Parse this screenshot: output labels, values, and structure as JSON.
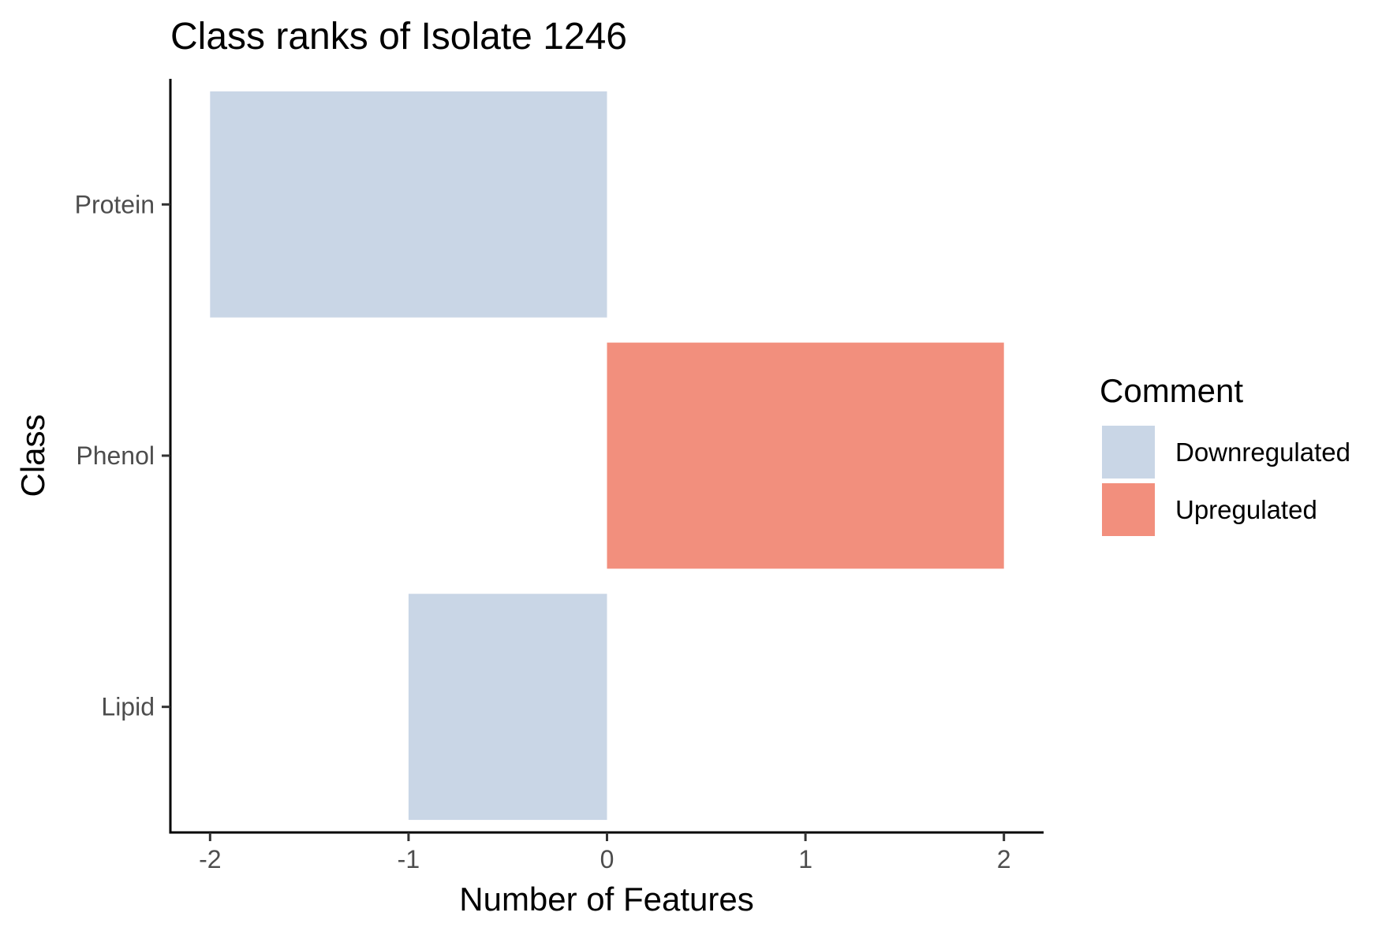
{
  "chart_data": {
    "type": "bar",
    "orientation": "horizontal",
    "title": "Class ranks of Isolate 1246",
    "xlabel": "Number of Features",
    "ylabel": "Class",
    "xlim": [
      -2.2,
      2.2
    ],
    "xticks": [
      -2,
      -1,
      0,
      1,
      2
    ],
    "categories": [
      "Protein",
      "Phenol",
      "Lipid"
    ],
    "bars": [
      {
        "category": "Protein",
        "value": -2,
        "comment": "Downregulated"
      },
      {
        "category": "Phenol",
        "value": 2,
        "comment": "Upregulated"
      },
      {
        "category": "Lipid",
        "value": -1,
        "comment": "Downregulated"
      }
    ],
    "legend": {
      "title": "Comment",
      "position": "right",
      "entries": [
        {
          "label": "Downregulated",
          "color": "#c9d6e6"
        },
        {
          "label": "Upregulated",
          "color": "#f28f7d"
        }
      ]
    },
    "grid": false
  }
}
